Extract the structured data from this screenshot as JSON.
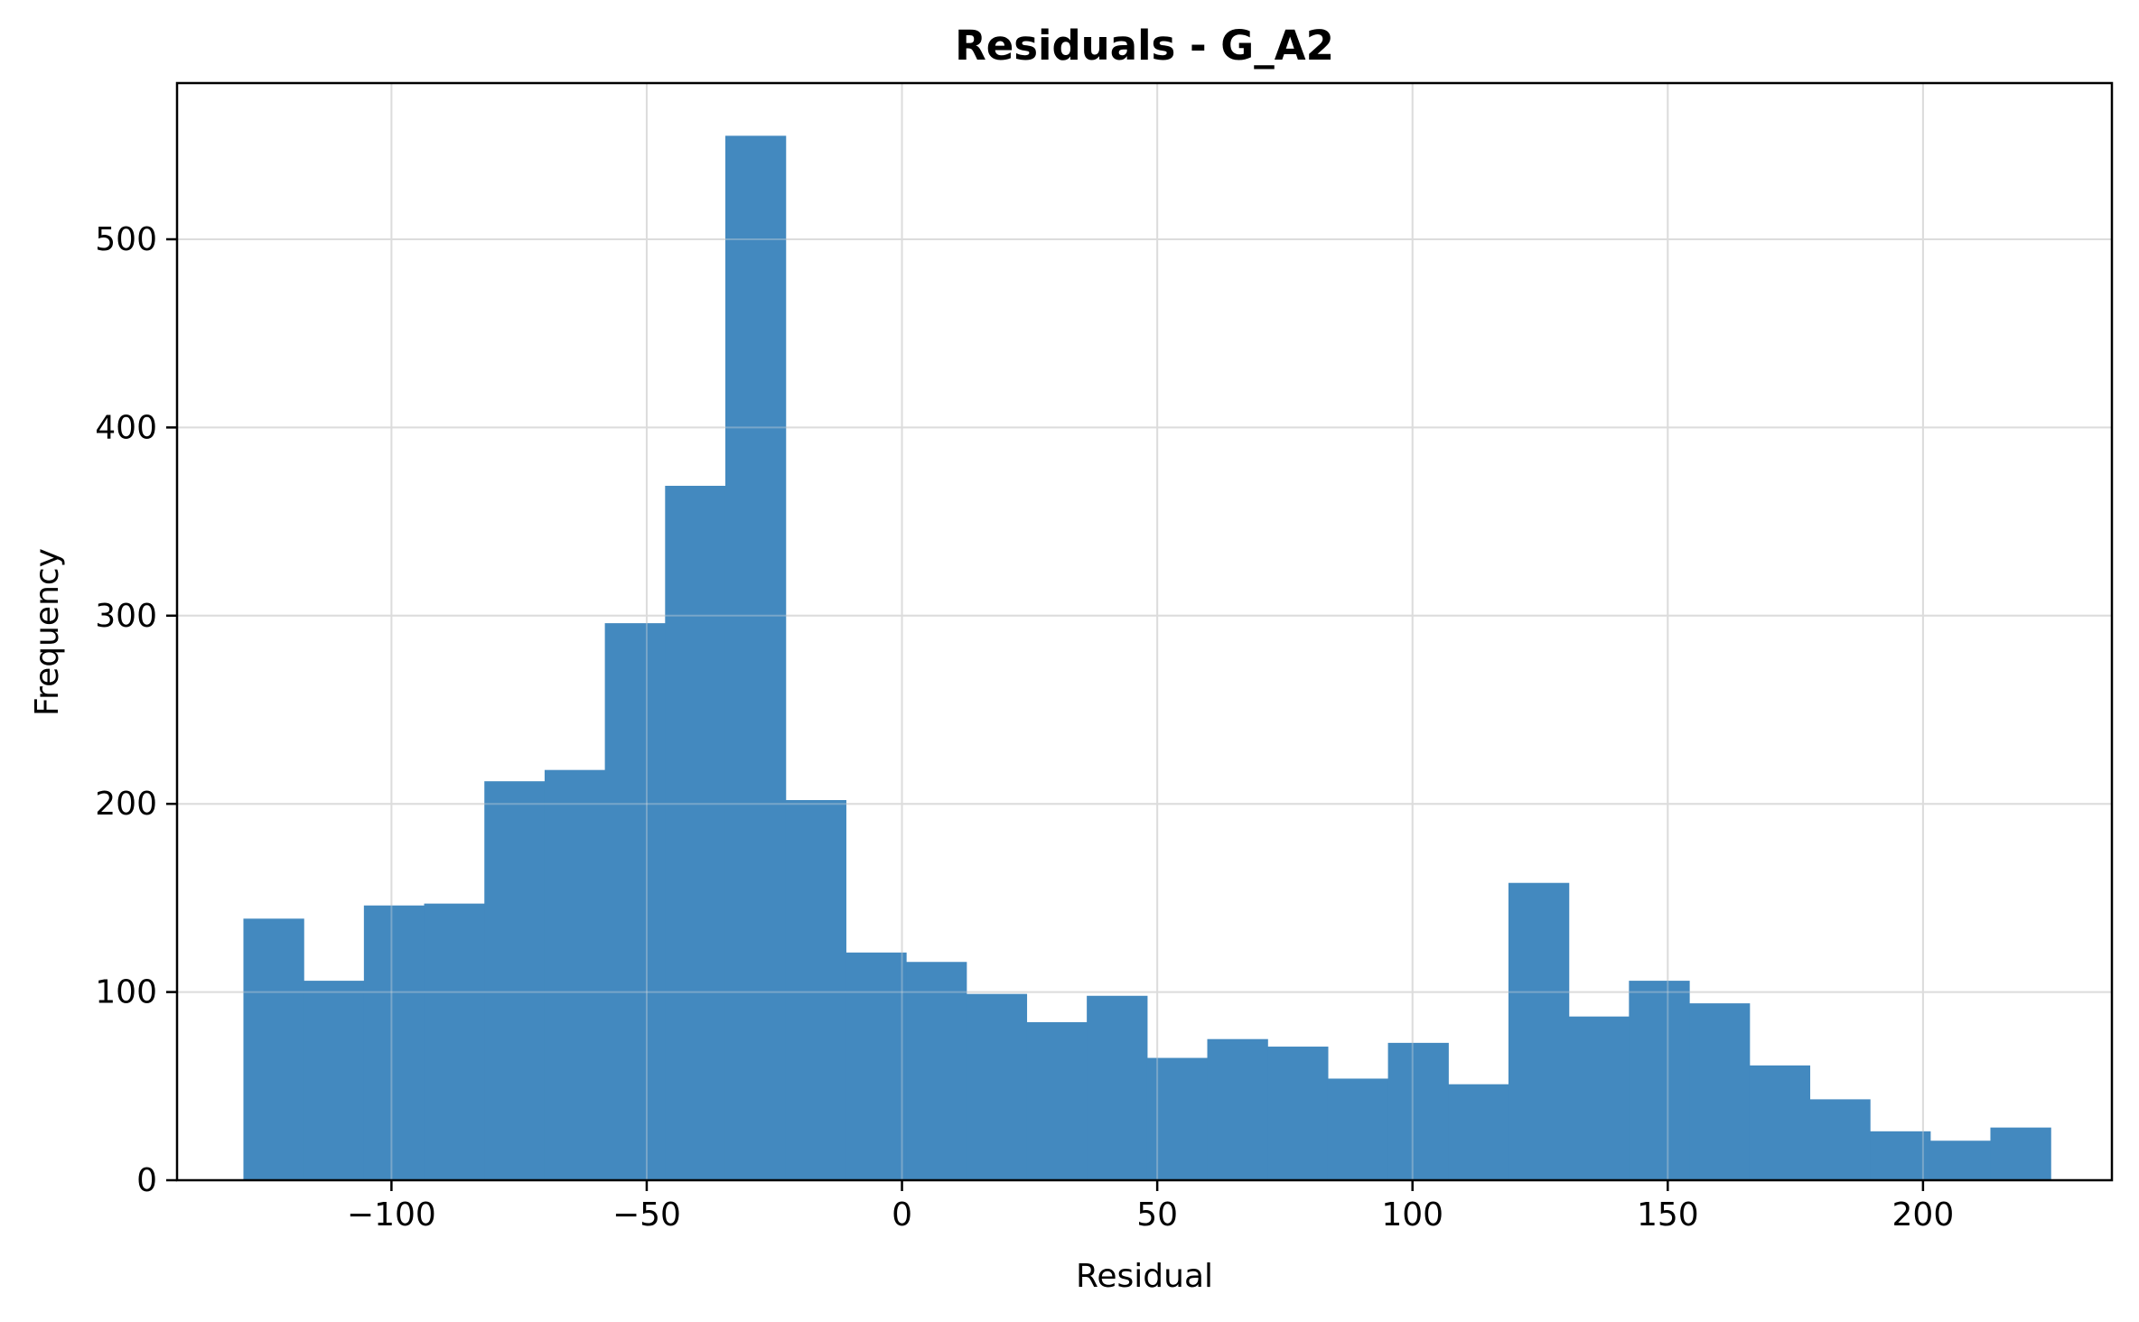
{
  "chart_data": {
    "type": "bar",
    "title": "Residuals - G_A2",
    "xlabel": "Residual",
    "ylabel": "Frequency",
    "xlim": [
      -142,
      237
    ],
    "ylim": [
      0,
      583
    ],
    "grid": true,
    "bar_color": "#4389bf",
    "bin_edges": [
      -129,
      -117.2,
      -105.4,
      -93.6,
      -81.8,
      -70,
      -58.2,
      -46.4,
      -34.6,
      -22.8,
      -11,
      0.8,
      12.6,
      24.4,
      36.2,
      48,
      59.8,
      71.6,
      83.4,
      95.2,
      107,
      118.8,
      130.6,
      142.4,
      154.2,
      166,
      177.8,
      189.6,
      201.4,
      213.2,
      225
    ],
    "values": [
      139,
      106,
      146,
      147,
      212,
      218,
      296,
      369,
      555,
      202,
      121,
      116,
      99,
      84,
      98,
      65,
      75,
      71,
      54,
      73,
      51,
      158,
      87,
      106,
      94,
      61,
      43,
      26,
      21,
      28
    ],
    "x_ticks": [
      {
        "value": -100,
        "label": "−100"
      },
      {
        "value": -50,
        "label": "−50"
      },
      {
        "value": 0,
        "label": "0"
      },
      {
        "value": 50,
        "label": "50"
      },
      {
        "value": 100,
        "label": "100"
      },
      {
        "value": 150,
        "label": "150"
      },
      {
        "value": 200,
        "label": "200"
      }
    ],
    "y_ticks": [
      {
        "value": 0,
        "label": "0"
      },
      {
        "value": 100,
        "label": "100"
      },
      {
        "value": 200,
        "label": "200"
      },
      {
        "value": 300,
        "label": "300"
      },
      {
        "value": 400,
        "label": "400"
      },
      {
        "value": 500,
        "label": "500"
      }
    ]
  }
}
